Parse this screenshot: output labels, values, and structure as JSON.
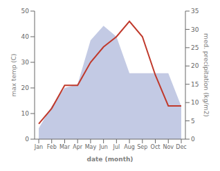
{
  "chart_data": {
    "type": "line",
    "xlabel": "date (month)",
    "ylabel": "max temp (C)",
    "y2label": "med. precipitation (kg/m2)",
    "categories": [
      "Jan",
      "Feb",
      "Mar",
      "Apr",
      "May",
      "Jun",
      "Jul",
      "Aug",
      "Sep",
      "Oct",
      "Nov",
      "Dec"
    ],
    "series": [
      {
        "type": "area",
        "axis": "y2",
        "color": "#aab4d8",
        "values": [
          3,
          9,
          14,
          15,
          27,
          31,
          28,
          18,
          18,
          18,
          18,
          9
        ]
      },
      {
        "type": "line",
        "color": "#c0392b",
        "values": [
          6,
          12,
          21,
          21,
          30,
          36,
          40,
          46,
          40,
          25,
          13,
          13
        ]
      }
    ],
    "ylim": [
      0,
      50
    ],
    "yticks": [
      0,
      10,
      20,
      30,
      40,
      50
    ],
    "y2lim": [
      0,
      35
    ],
    "y2ticks": [
      0,
      5,
      10,
      15,
      20,
      25,
      30,
      35
    ],
    "grid": false
  }
}
